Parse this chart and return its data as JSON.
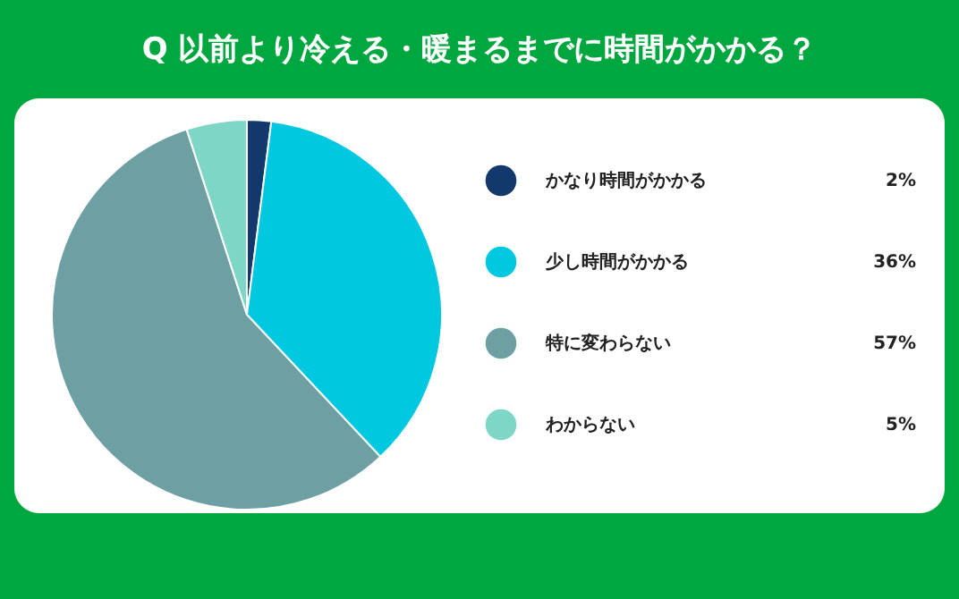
{
  "chart_data": {
    "type": "pie",
    "title": "Q 以前より冷える・暖まるまでに時間がかかる？",
    "categories": [
      "かなり時間がかかる",
      "少し時間がかかる",
      "特に変わらない",
      "わからない"
    ],
    "values": [
      2,
      36,
      57,
      5
    ],
    "colors": [
      "#13386b",
      "#00c8e0",
      "#6e9fa2",
      "#7dd6c6"
    ],
    "value_labels": [
      "2%",
      "36%",
      "57%",
      "5%"
    ],
    "legend": "right"
  }
}
